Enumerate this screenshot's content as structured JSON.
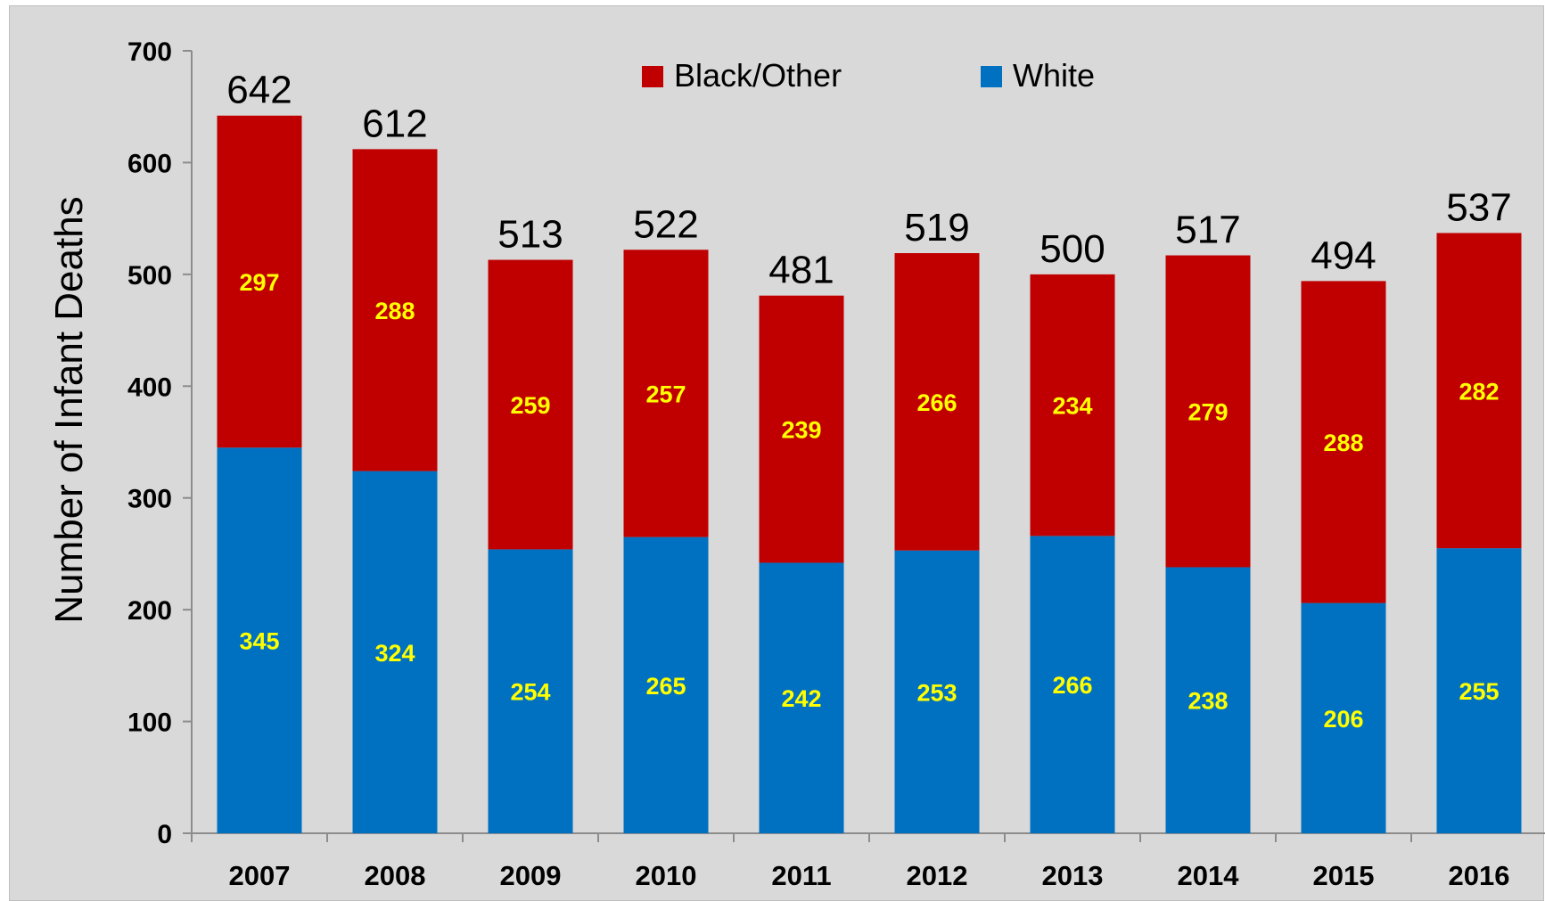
{
  "chart_data": {
    "type": "bar",
    "stacked": true,
    "categories": [
      "2007",
      "2008",
      "2009",
      "2010",
      "2011",
      "2012",
      "2013",
      "2014",
      "2015",
      "2016"
    ],
    "series": [
      {
        "name": "White",
        "color": "#0070c0",
        "values": [
          345,
          324,
          254,
          265,
          242,
          253,
          266,
          238,
          206,
          255
        ]
      },
      {
        "name": "Black/Other",
        "color": "#c00000",
        "values": [
          297,
          288,
          259,
          257,
          239,
          266,
          234,
          279,
          288,
          282
        ]
      }
    ],
    "totals": [
      642,
      612,
      513,
      522,
      481,
      519,
      500,
      517,
      494,
      537
    ],
    "ylabel": "Number of Infant Deaths",
    "xlabel": "",
    "ylim": [
      0,
      700
    ],
    "yticks": [
      0,
      100,
      200,
      300,
      400,
      500,
      600,
      700
    ],
    "legend": {
      "placement": "top-center",
      "entries": [
        {
          "label": "Black/Other",
          "color": "#c00000"
        },
        {
          "label": "White",
          "color": "#0070c0"
        }
      ]
    },
    "grid": false
  }
}
